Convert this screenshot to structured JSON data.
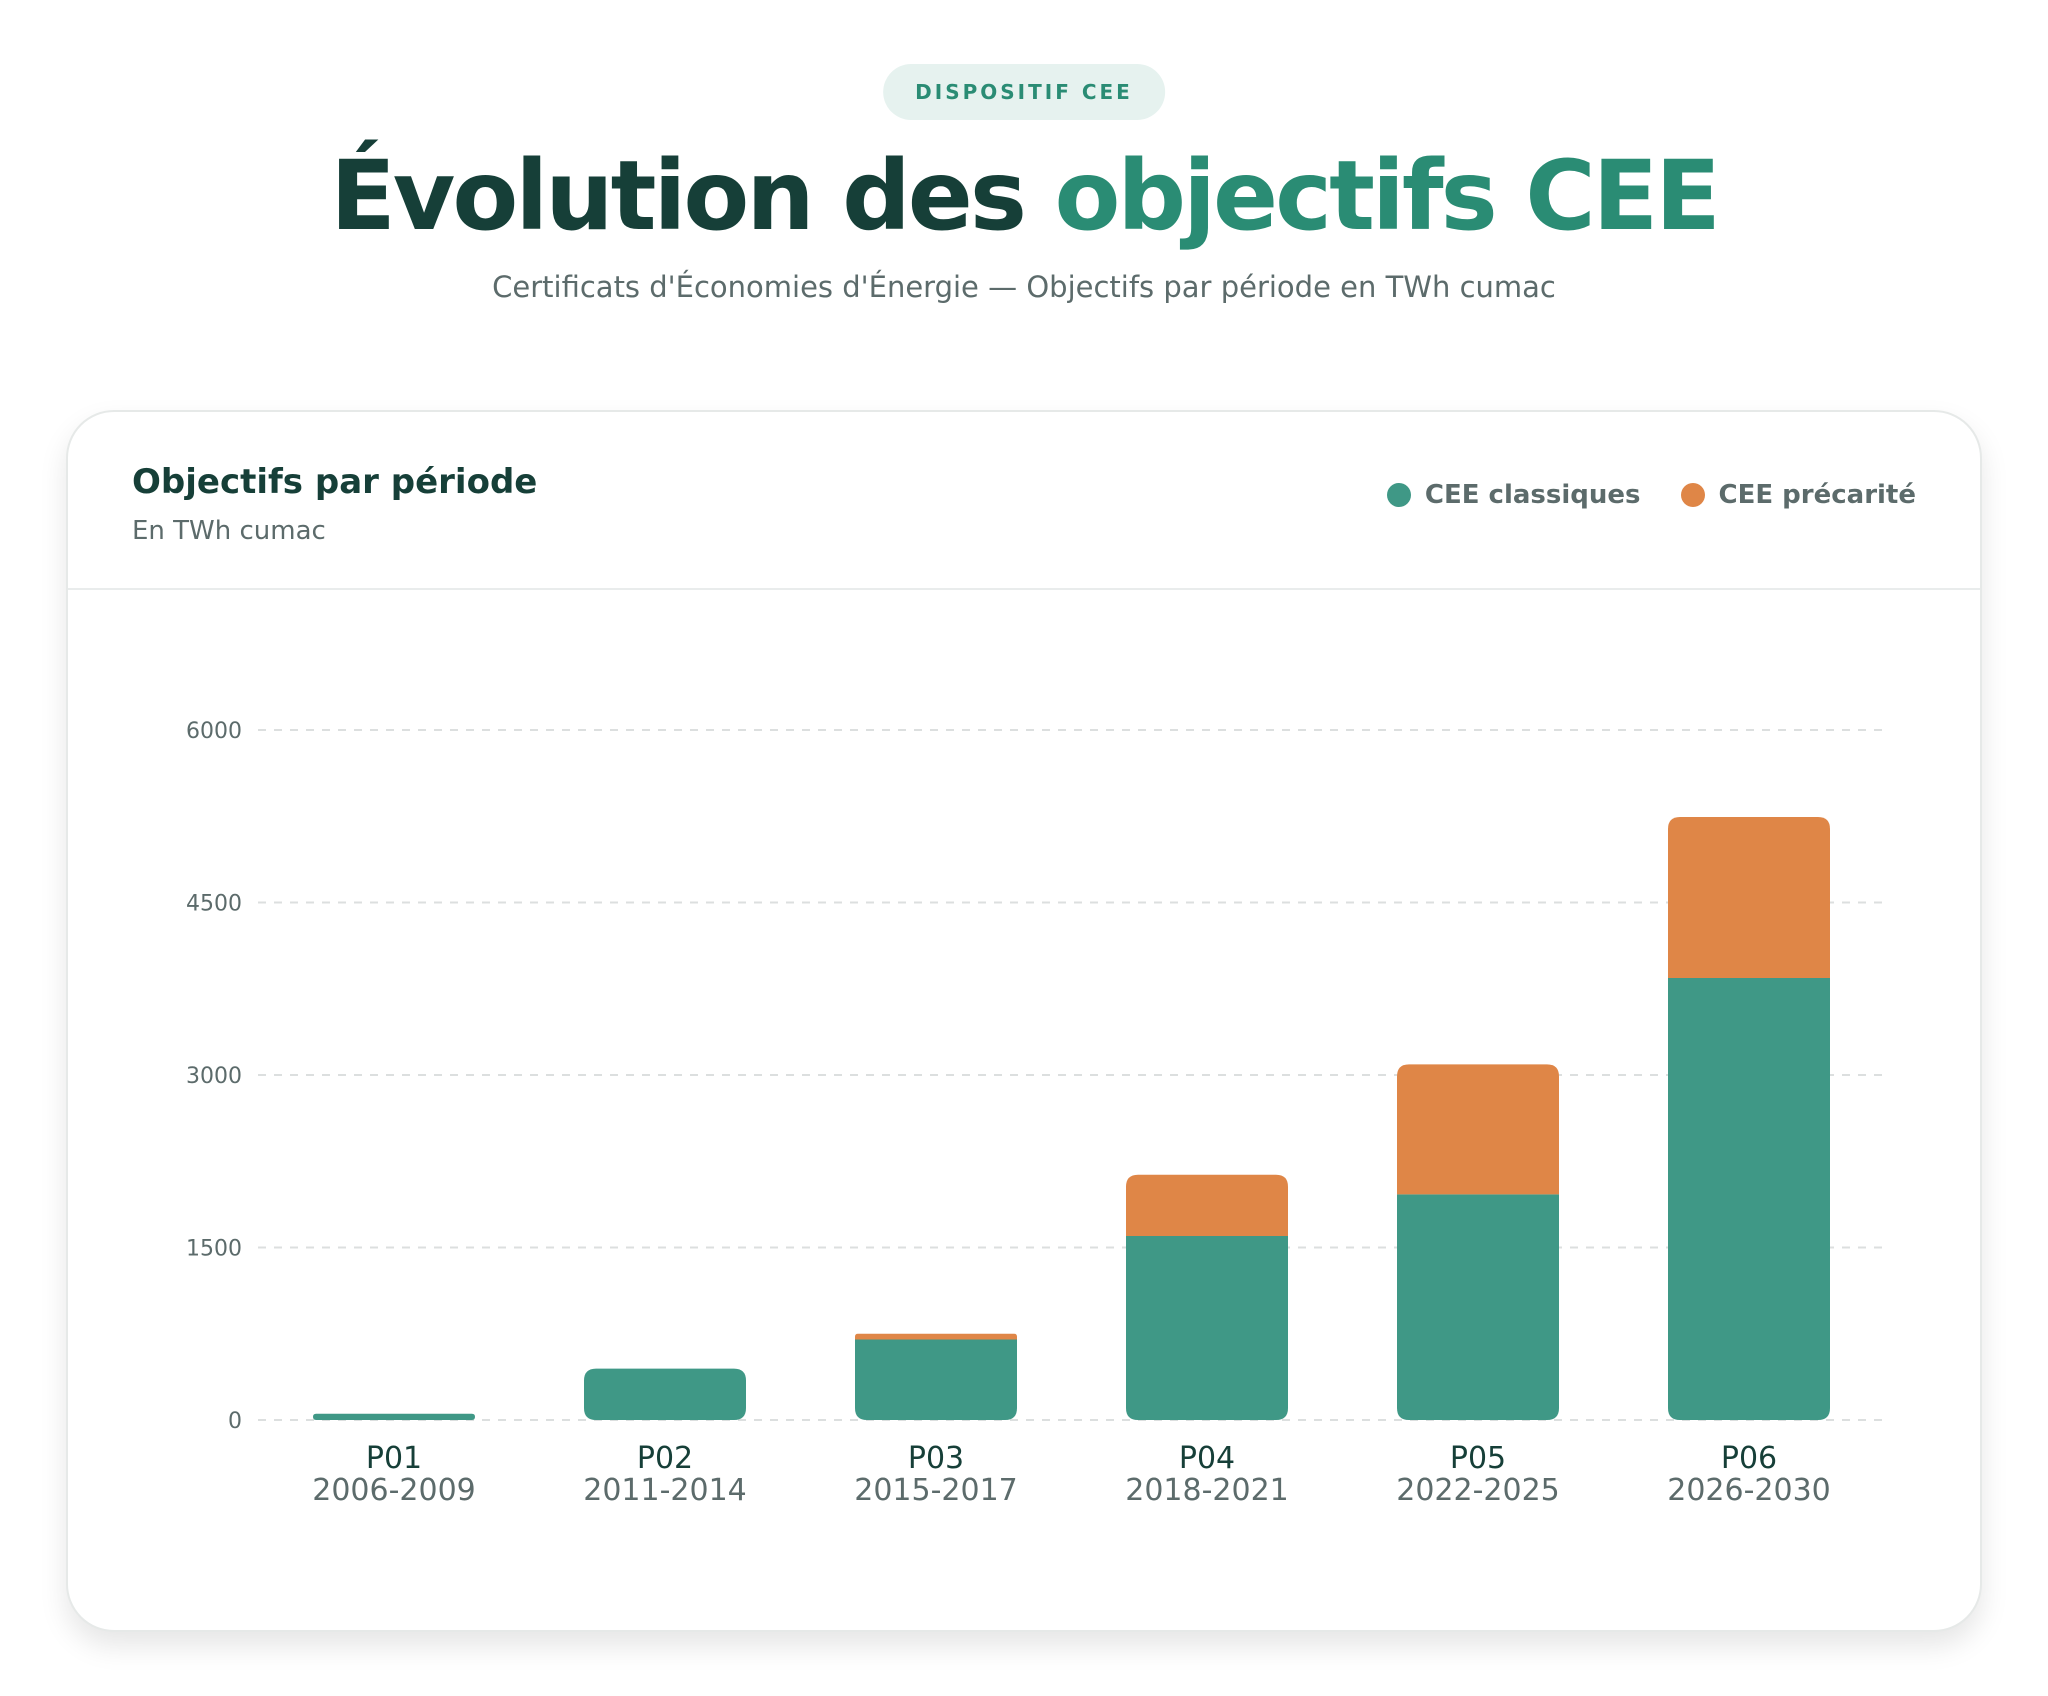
{
  "header": {
    "badge": "DISPOSITIF CEE",
    "title_part1": "Évolution des ",
    "title_part2": "objectifs CEE",
    "subtitle": "Certificats d'Économies d'Énergie — Objectifs par période en TWh cumac"
  },
  "card": {
    "title": "Objectifs par période",
    "unit": "En TWh cumac"
  },
  "colors": {
    "classiques": "#3f9886",
    "precarite": "#df8647",
    "grid": "#dcdfdf",
    "tick_text": "#5c6b6b",
    "period_text": "#163f38",
    "years_text": "#5c6b6b"
  },
  "chart_data": {
    "type": "bar",
    "stacked": true,
    "categories": [
      "P01",
      "P02",
      "P03",
      "P04",
      "P05",
      "P06"
    ],
    "sub_labels": [
      "2006-2009",
      "2011-2014",
      "2015-2017",
      "2018-2021",
      "2022-2025",
      "2026-2030"
    ],
    "series": [
      {
        "name": "CEE classiques",
        "values": [
          54,
          447,
          700,
          1600,
          1962,
          3843
        ]
      },
      {
        "name": "CEE précarité",
        "values": [
          0,
          0,
          50,
          533,
          1130,
          1400
        ]
      }
    ],
    "yticks": [
      0,
      1500,
      3000,
      4500,
      6000
    ],
    "ylim": [
      0,
      6000
    ],
    "grid": true,
    "legend_position": "top-right"
  }
}
